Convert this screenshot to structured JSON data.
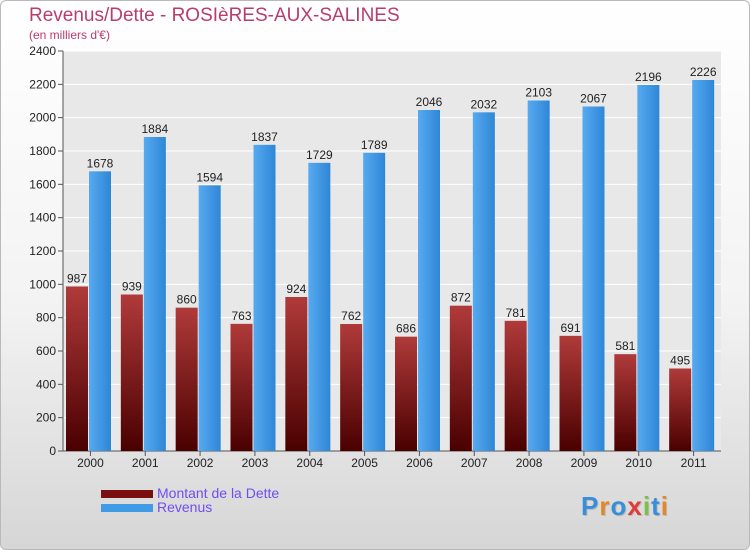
{
  "chart_data": {
    "type": "bar",
    "title": "Revenus/Dette - ROSIèRES-AUX-SALINES",
    "subtitle": "(en milliers d'€)",
    "categories": [
      "2000",
      "2001",
      "2002",
      "2003",
      "2004",
      "2005",
      "2006",
      "2007",
      "2008",
      "2009",
      "2010",
      "2011"
    ],
    "series": [
      {
        "name": "Montant de la Dette",
        "color": "#7a0f0f",
        "values": [
          987,
          939,
          860,
          763,
          924,
          762,
          686,
          872,
          781,
          691,
          581,
          495
        ]
      },
      {
        "name": "Revenus",
        "color": "#3f9be6",
        "values": [
          1678,
          1884,
          1594,
          1837,
          1729,
          1789,
          2046,
          2032,
          2103,
          2067,
          2196,
          2226
        ]
      }
    ],
    "ylim": [
      0,
      2400
    ],
    "yticks": [
      0,
      200,
      400,
      600,
      800,
      1000,
      1200,
      1400,
      1600,
      1800,
      2000,
      2200,
      2400
    ],
    "grid": true,
    "legend": "bottom-left"
  },
  "logo": {
    "text": "Proxiti",
    "colors": [
      "#3a8ed8",
      "#e0892a",
      "#3a8ed8",
      "#e03a3a",
      "#7cc04a",
      "#3a8ed8",
      "#e0892a"
    ]
  }
}
